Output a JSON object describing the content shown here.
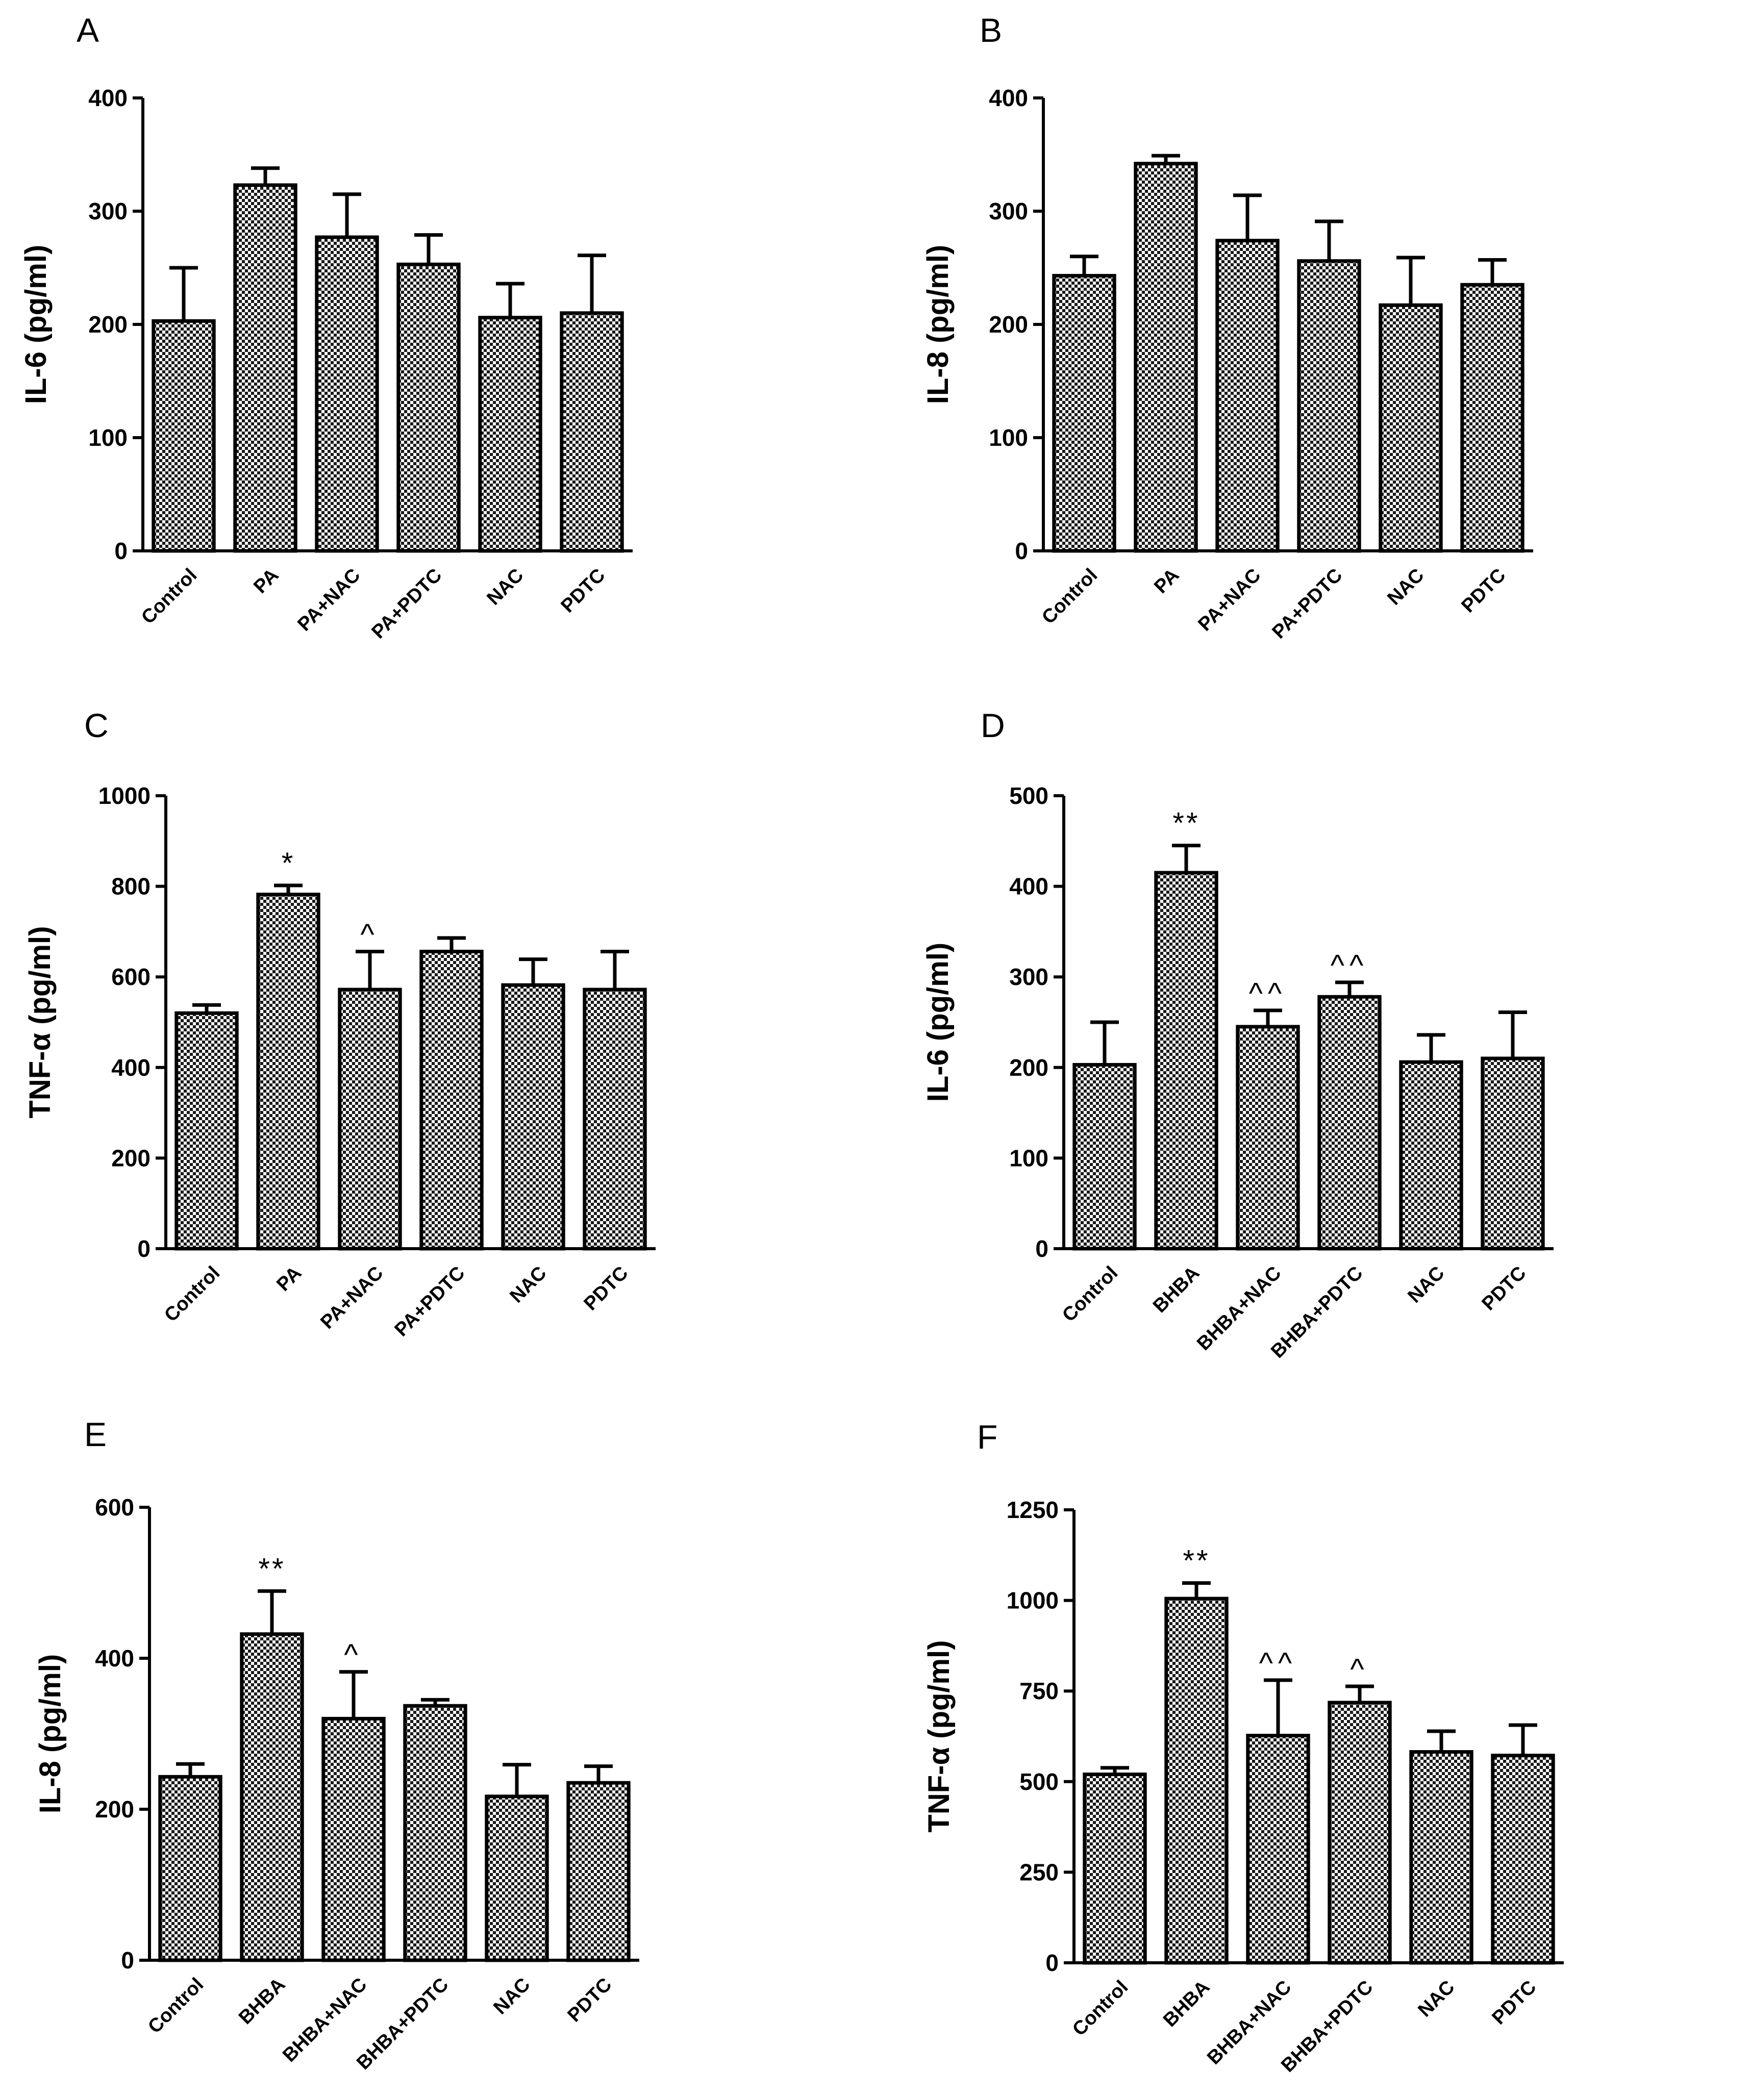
{
  "chart_data": [
    {
      "panel": "A",
      "type": "bar",
      "ylabel": "IL-6 (pg/ml)",
      "ylim": [
        0,
        400
      ],
      "yticks": [
        0,
        100,
        200,
        300,
        400
      ],
      "categories": [
        "Control",
        "PA",
        "PA+NAC",
        "PA+PDTC",
        "NAC",
        "PDTC"
      ],
      "values": [
        203,
        323,
        277,
        253,
        206,
        210
      ],
      "errors": [
        47,
        15,
        38,
        26,
        30,
        51
      ],
      "annotations": [
        "",
        "",
        "",
        "",
        "",
        ""
      ]
    },
    {
      "panel": "B",
      "type": "bar",
      "ylabel": "IL-8 (pg/ml)",
      "ylim": [
        0,
        400
      ],
      "yticks": [
        0,
        100,
        200,
        300,
        400
      ],
      "categories": [
        "Control",
        "PA",
        "PA+NAC",
        "PA+PDTC",
        "NAC",
        "PDTC"
      ],
      "values": [
        243,
        342,
        274,
        256,
        217,
        235
      ],
      "errors": [
        17,
        7,
        40,
        35,
        42,
        22
      ],
      "annotations": [
        "",
        "",
        "",
        "",
        "",
        ""
      ]
    },
    {
      "panel": "C",
      "type": "bar",
      "ylabel": "TNF-α (pg/ml)",
      "ylim": [
        0,
        1000
      ],
      "yticks": [
        0,
        200,
        400,
        600,
        800,
        1000
      ],
      "categories": [
        "Control",
        "PA",
        "PA+NAC",
        "PA+PDTC",
        "NAC",
        "PDTC"
      ],
      "values": [
        520,
        782,
        572,
        656,
        582,
        572
      ],
      "errors": [
        18,
        20,
        84,
        30,
        57,
        84
      ],
      "annotations": [
        "",
        "*",
        "^",
        "",
        "",
        ""
      ]
    },
    {
      "panel": "D",
      "type": "bar",
      "ylabel": "IL-6 (pg/ml)",
      "ylim": [
        0,
        500
      ],
      "yticks": [
        0,
        100,
        200,
        300,
        400,
        500
      ],
      "categories": [
        "Control",
        "BHBA",
        "BHBA+NAC",
        "BHBA+PDTC",
        "NAC",
        "PDTC"
      ],
      "values": [
        203,
        415,
        245,
        278,
        206,
        210
      ],
      "errors": [
        47,
        30,
        18,
        16,
        30,
        51
      ],
      "annotations": [
        "",
        "**",
        "^^",
        "^^",
        "",
        ""
      ]
    },
    {
      "panel": "E",
      "type": "bar",
      "ylabel": "IL-8 (pg/ml)",
      "ylim": [
        0,
        600
      ],
      "yticks": [
        0,
        200,
        400,
        600
      ],
      "categories": [
        "Control",
        "BHBA",
        "BHBA+NAC",
        "BHBA+PDTC",
        "NAC",
        "PDTC"
      ],
      "values": [
        243,
        432,
        320,
        337,
        217,
        235
      ],
      "errors": [
        17,
        57,
        62,
        8,
        42,
        22
      ],
      "annotations": [
        "",
        "**",
        "^",
        "",
        "",
        ""
      ]
    },
    {
      "panel": "F",
      "type": "bar",
      "ylabel": "TNF-α (pg/ml)",
      "ylim": [
        0,
        1250
      ],
      "yticks": [
        0,
        250,
        500,
        750,
        1000,
        1250
      ],
      "categories": [
        "Control",
        "BHBA",
        "BHBA+NAC",
        "BHBA+PDTC",
        "NAC",
        "PDTC"
      ],
      "values": [
        520,
        1005,
        627,
        718,
        582,
        572
      ],
      "errors": [
        18,
        43,
        153,
        45,
        57,
        84
      ],
      "annotations": [
        "",
        "**",
        "^^",
        "^",
        "",
        ""
      ]
    }
  ]
}
